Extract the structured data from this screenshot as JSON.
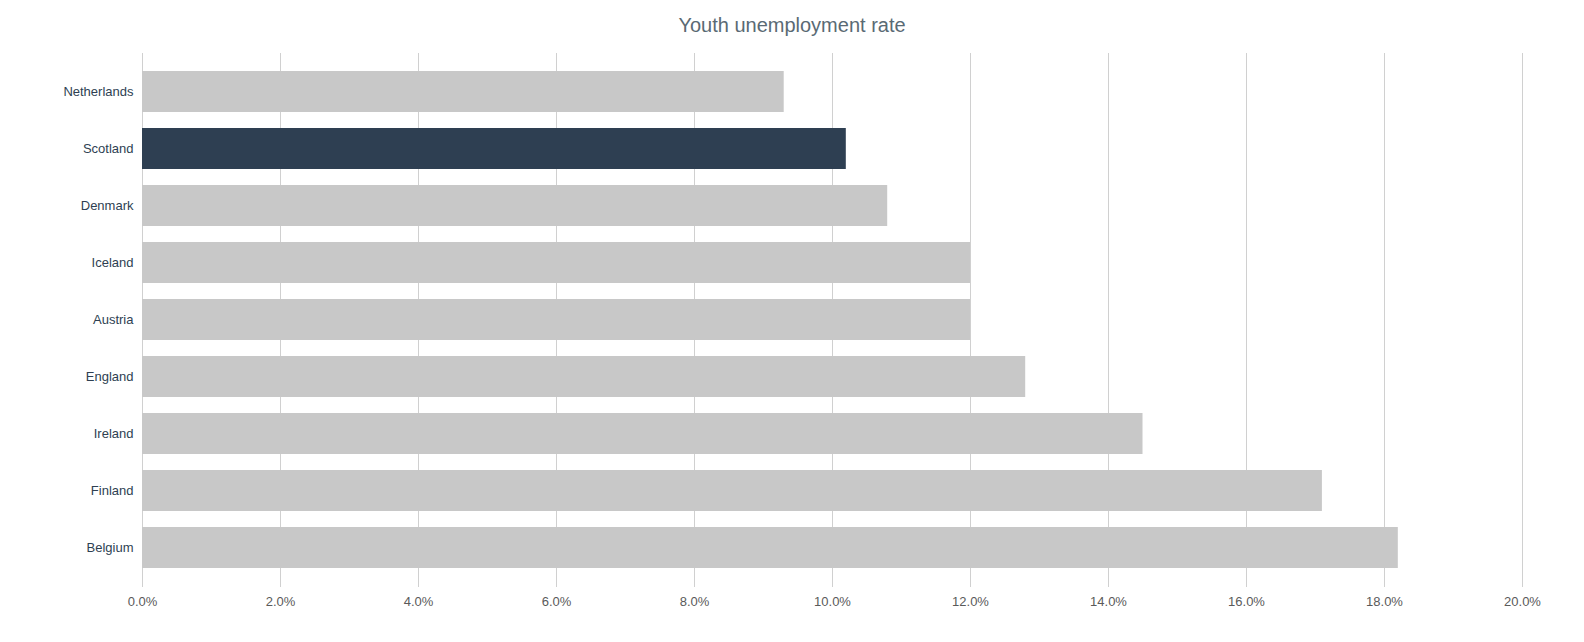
{
  "chart_data": {
    "type": "bar",
    "title": "Youth unemployment rate",
    "orientation": "horizontal",
    "categories": [
      "Netherlands",
      "Scotland",
      "Denmark",
      "Iceland",
      "Austria",
      "England",
      "Ireland",
      "Finland",
      "Belgium"
    ],
    "values": [
      0.093,
      0.102,
      0.108,
      0.12,
      0.12,
      0.128,
      0.145,
      0.171,
      0.182
    ],
    "colors": [
      "#c8c8c8",
      "#2e3f52",
      "#c8c8c8",
      "#c8c8c8",
      "#c8c8c8",
      "#c8c8c8",
      "#c8c8c8",
      "#c8c8c8",
      "#c8c8c8"
    ],
    "xlim": [
      0,
      0.2
    ],
    "xticks": [
      {
        "value": 0.0,
        "label": "0.0%"
      },
      {
        "value": 0.02,
        "label": "2.0%"
      },
      {
        "value": 0.04,
        "label": "4.0%"
      },
      {
        "value": 0.06,
        "label": "6.0%"
      },
      {
        "value": 0.08,
        "label": "8.0%"
      },
      {
        "value": 0.1,
        "label": "10.0%"
      },
      {
        "value": 0.12,
        "label": "12.0%"
      },
      {
        "value": 0.14,
        "label": "14.0%"
      },
      {
        "value": 0.16,
        "label": "16.0%"
      },
      {
        "value": 0.18,
        "label": "18.0%"
      },
      {
        "value": 0.2,
        "label": "20.0%"
      }
    ],
    "grid": true
  }
}
